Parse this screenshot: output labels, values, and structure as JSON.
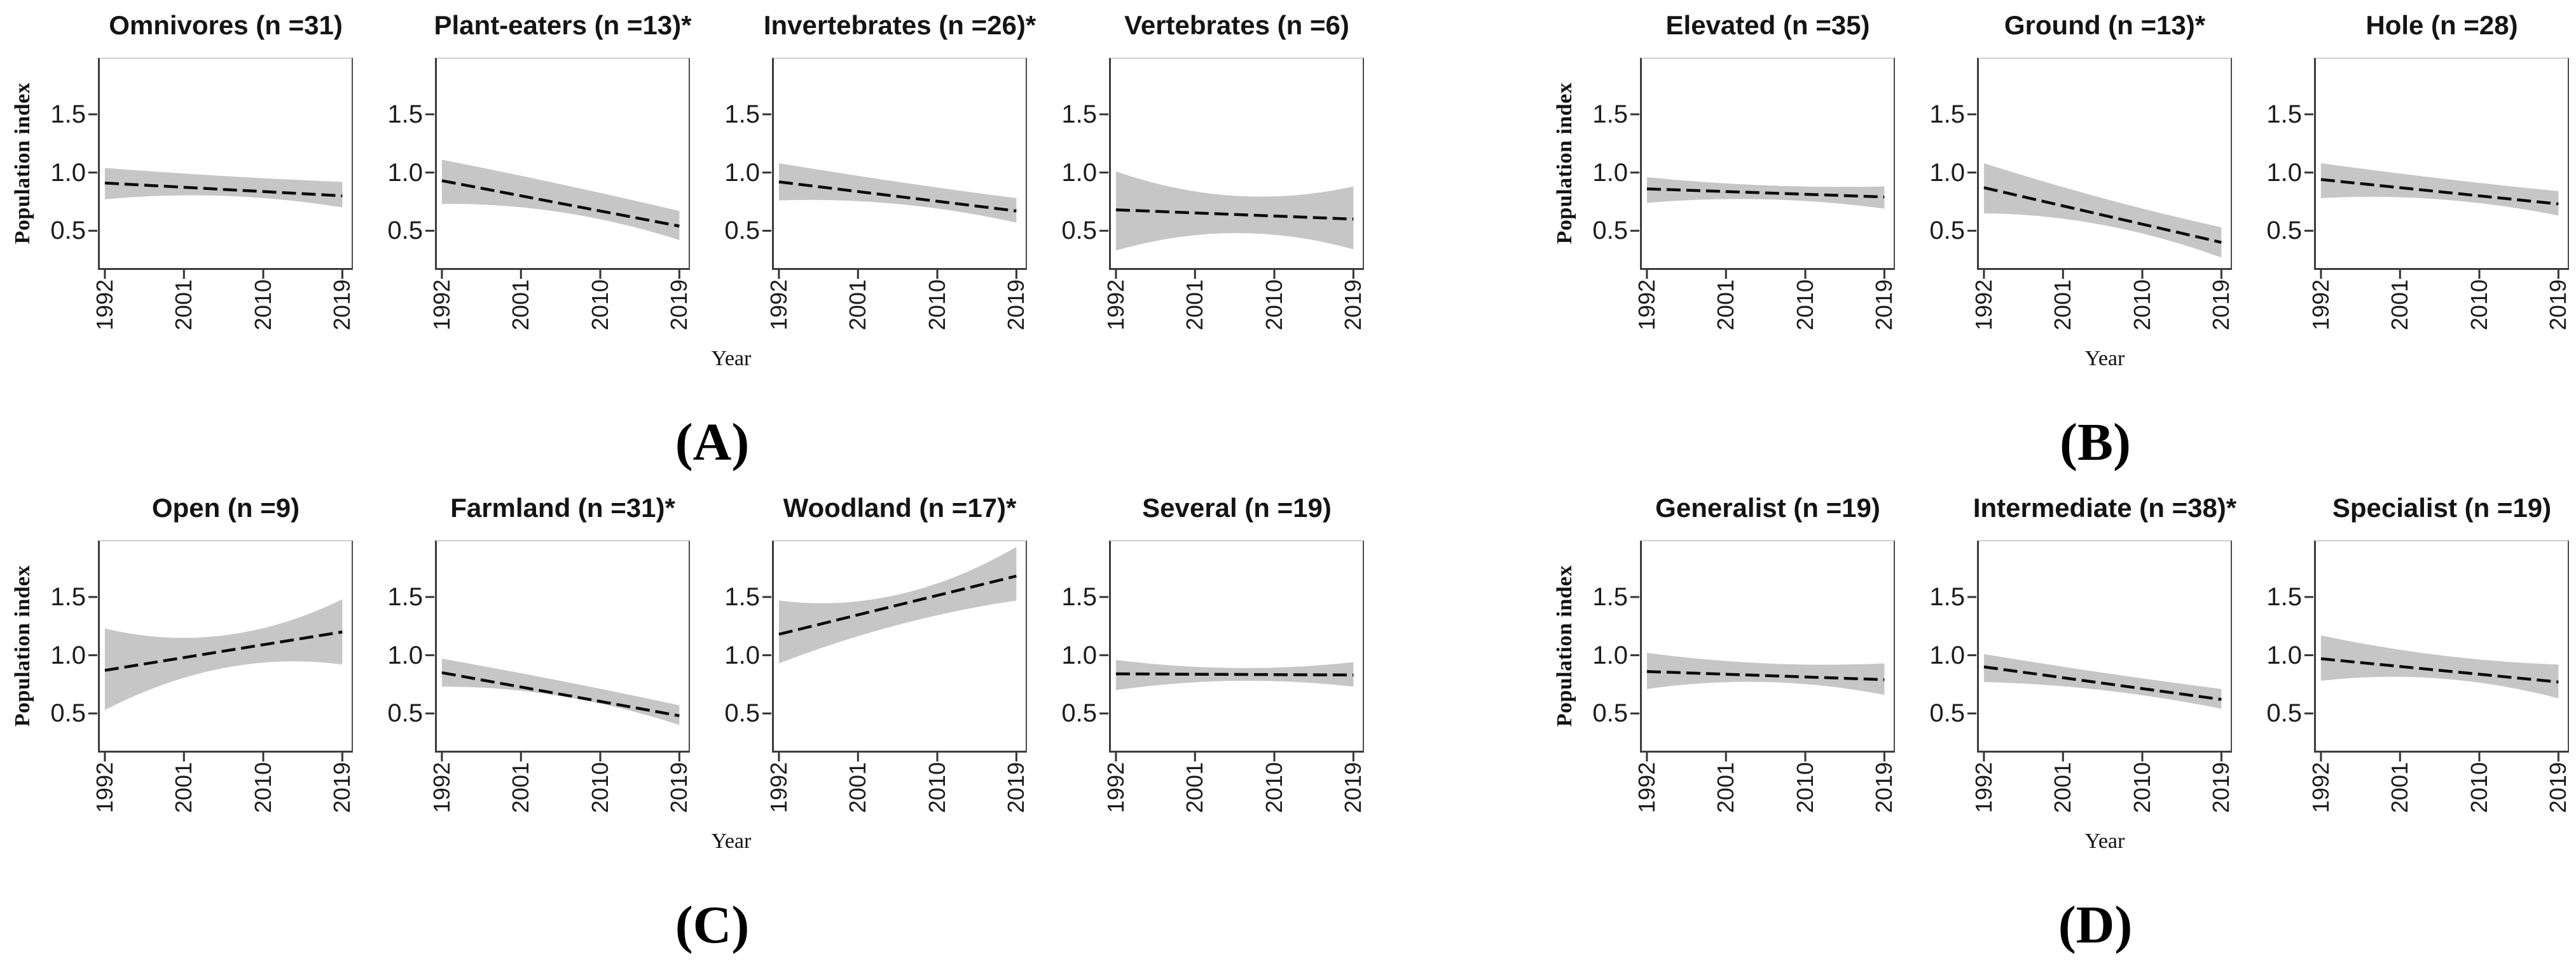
{
  "figure": {
    "ylabel": "Population index",
    "xlabel": "Year",
    "y_ticks": [
      "1.5",
      "1.0",
      "0.5"
    ],
    "x_ticks": [
      "1992",
      "2001",
      "2010",
      "2019"
    ],
    "ylim": [
      0.18,
      1.98
    ],
    "xlim": [
      1992,
      2019
    ],
    "band_color": "#c6c6c6",
    "line_color": "#0a0a0a",
    "grid": "off",
    "legend": "none"
  },
  "chart_data": [
    {
      "panel": "A",
      "label": "(A)",
      "type": "line",
      "band_x": [
        1992,
        2005.5,
        2019
      ],
      "charts": [
        {
          "title": "Omnivores (n =31)",
          "name": "Omnivores",
          "n": 31,
          "significant": false,
          "line": {
            "x": [
              1992,
              2019
            ],
            "start": 0.91,
            "end": 0.8
          },
          "band": {
            "upper": [
              1.04,
              0.97,
              0.92
            ],
            "lower": [
              0.77,
              0.8,
              0.7
            ]
          }
        },
        {
          "title": "Plant-eaters (n =13)*",
          "name": "Plant-eaters",
          "n": 13,
          "significant": true,
          "line": {
            "x": [
              1992,
              2019
            ],
            "start": 0.93,
            "end": 0.54
          },
          "band": {
            "upper": [
              1.11,
              0.9,
              0.67
            ],
            "lower": [
              0.73,
              0.66,
              0.42
            ]
          }
        },
        {
          "title": "Invertebrates (n =26)*",
          "name": "Invertebrates",
          "n": 26,
          "significant": true,
          "line": {
            "x": [
              1992,
              2019
            ],
            "start": 0.92,
            "end": 0.67
          },
          "band": {
            "upper": [
              1.08,
              0.92,
              0.78
            ],
            "lower": [
              0.76,
              0.73,
              0.57
            ]
          }
        },
        {
          "title": "Vertebrates (n =6)",
          "name": "Vertebrates",
          "n": 6,
          "significant": false,
          "line": {
            "x": [
              1992,
              2019
            ],
            "start": 0.68,
            "end": 0.6
          },
          "band": {
            "upper": [
              1.01,
              0.8,
              0.88
            ],
            "lower": [
              0.33,
              0.48,
              0.34
            ]
          }
        }
      ]
    },
    {
      "panel": "B",
      "label": "(B)",
      "type": "line",
      "band_x": [
        1992,
        2005.5,
        2019
      ],
      "charts": [
        {
          "title": "Elevated (n =35)",
          "name": "Elevated",
          "n": 35,
          "significant": false,
          "line": {
            "x": [
              1992,
              2019
            ],
            "start": 0.86,
            "end": 0.79
          },
          "band": {
            "upper": [
              0.96,
              0.89,
              0.88
            ],
            "lower": [
              0.74,
              0.77,
              0.69
            ]
          }
        },
        {
          "title": "Ground (n =13)*",
          "name": "Ground",
          "n": 13,
          "significant": true,
          "line": {
            "x": [
              1992,
              2019
            ],
            "start": 0.87,
            "end": 0.4
          },
          "band": {
            "upper": [
              1.08,
              0.78,
              0.53
            ],
            "lower": [
              0.65,
              0.55,
              0.27
            ]
          }
        },
        {
          "title": "Hole (n =28)",
          "name": "Hole",
          "n": 28,
          "significant": false,
          "line": {
            "x": [
              1992,
              2019
            ],
            "start": 0.94,
            "end": 0.73
          },
          "band": {
            "upper": [
              1.08,
              0.95,
              0.84
            ],
            "lower": [
              0.78,
              0.77,
              0.63
            ]
          }
        }
      ]
    },
    {
      "panel": "C",
      "label": "(C)",
      "type": "line",
      "band_x": [
        1992,
        2005.5,
        2019
      ],
      "charts": [
        {
          "title": "Open (n =9)",
          "name": "Open",
          "n": 9,
          "significant": false,
          "line": {
            "x": [
              1992,
              2019
            ],
            "start": 0.87,
            "end": 1.2
          },
          "band": {
            "upper": [
              1.23,
              1.17,
              1.48
            ],
            "lower": [
              0.53,
              0.89,
              0.92
            ]
          }
        },
        {
          "title": "Farmland (n =31)*",
          "name": "Farmland",
          "n": 31,
          "significant": true,
          "line": {
            "x": [
              1992,
              2019
            ],
            "start": 0.85,
            "end": 0.48
          },
          "band": {
            "upper": [
              0.97,
              0.78,
              0.57
            ],
            "lower": [
              0.73,
              0.65,
              0.4
            ]
          }
        },
        {
          "title": "Woodland (n =17)*",
          "name": "Woodland",
          "n": 17,
          "significant": true,
          "line": {
            "x": [
              1992,
              2019
            ],
            "start": 1.18,
            "end": 1.68
          },
          "band": {
            "upper": [
              1.47,
              1.52,
              1.93
            ],
            "lower": [
              0.93,
              1.26,
              1.47
            ]
          }
        },
        {
          "title": "Several (n =19)",
          "name": "Several",
          "n": 19,
          "significant": false,
          "line": {
            "x": [
              1992,
              2019
            ],
            "start": 0.84,
            "end": 0.83
          },
          "band": {
            "upper": [
              0.96,
              0.89,
              0.94
            ],
            "lower": [
              0.7,
              0.78,
              0.73
            ]
          }
        }
      ]
    },
    {
      "panel": "D",
      "label": "(D)",
      "type": "line",
      "band_x": [
        1992,
        2005.5,
        2019
      ],
      "charts": [
        {
          "title": "Generalist (n =19)",
          "name": "Generalist",
          "n": 19,
          "significant": false,
          "line": {
            "x": [
              1992,
              2019
            ],
            "start": 0.86,
            "end": 0.79
          },
          "band": {
            "upper": [
              1.02,
              0.93,
              0.93
            ],
            "lower": [
              0.71,
              0.77,
              0.66
            ]
          }
        },
        {
          "title": "Intermediate (n =38)*",
          "name": "Intermediate",
          "n": 38,
          "significant": true,
          "line": {
            "x": [
              1992,
              2019
            ],
            "start": 0.9,
            "end": 0.62
          },
          "band": {
            "upper": [
              1.01,
              0.85,
              0.71
            ],
            "lower": [
              0.77,
              0.7,
              0.54
            ]
          }
        },
        {
          "title": "Specialist (n =19)",
          "name": "Specialist",
          "n": 19,
          "significant": false,
          "line": {
            "x": [
              1992,
              2019
            ],
            "start": 0.97,
            "end": 0.77
          },
          "band": {
            "upper": [
              1.17,
              1.0,
              0.92
            ],
            "lower": [
              0.78,
              0.8,
              0.63
            ]
          }
        }
      ]
    }
  ]
}
